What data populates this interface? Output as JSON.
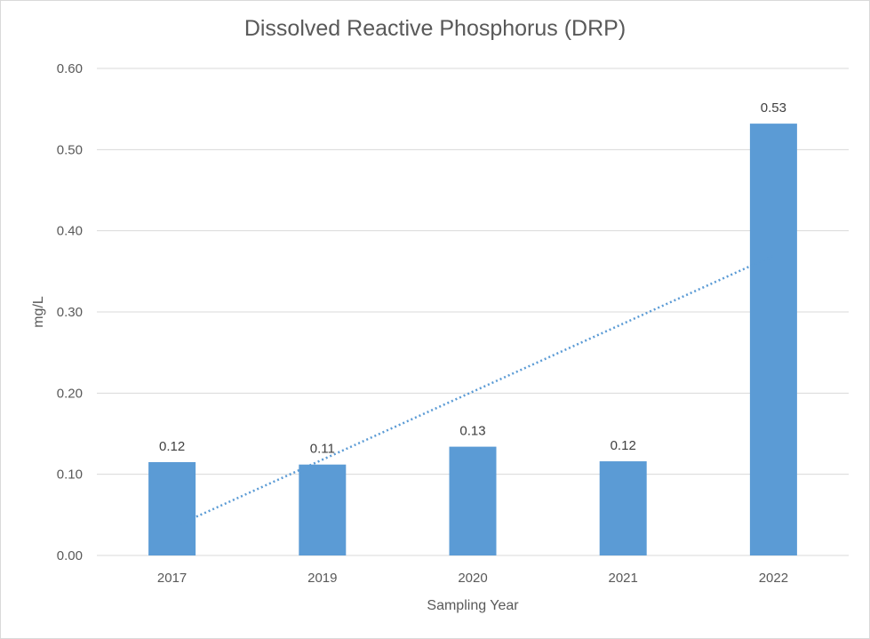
{
  "chart_data": {
    "type": "bar",
    "title": "Dissolved Reactive Phosphorus (DRP)",
    "xlabel": "Sampling Year",
    "ylabel": "mg/L",
    "categories": [
      "2017",
      "2019",
      "2020",
      "2021",
      "2022"
    ],
    "values": [
      0.115,
      0.112,
      0.134,
      0.116,
      0.532
    ],
    "data_labels": [
      "0.12",
      "0.11",
      "0.13",
      "0.12",
      "0.53"
    ],
    "ylim": [
      0,
      0.6
    ],
    "yticks": [
      "0.00",
      "0.10",
      "0.20",
      "0.30",
      "0.40",
      "0.50",
      "0.60"
    ],
    "trendline": {
      "type": "linear",
      "style": "dotted"
    },
    "grid": true,
    "legend": "none",
    "colors": {
      "bar": "#5b9bd5",
      "trend": "#5b9bd5",
      "grid": "#d9d9d9"
    }
  }
}
